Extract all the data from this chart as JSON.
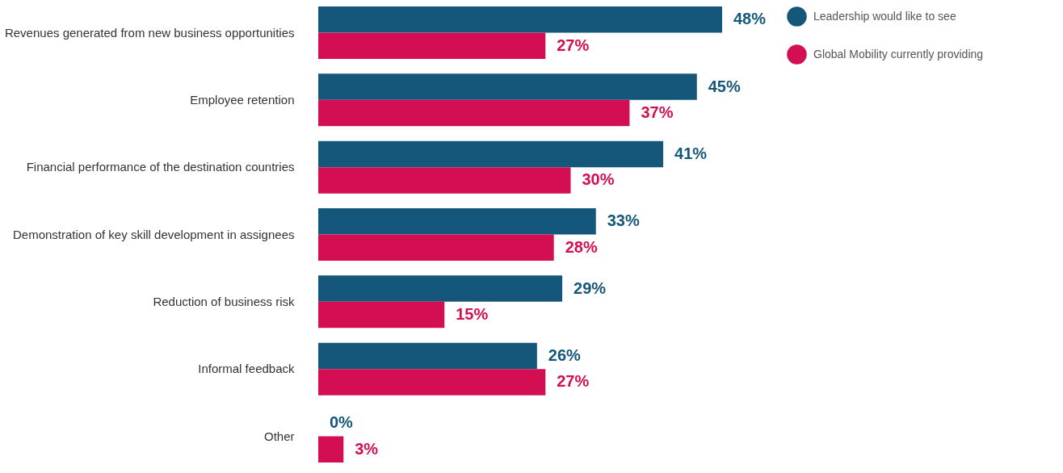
{
  "chart_data": {
    "type": "bar",
    "orientation": "horizontal",
    "legend": "top right",
    "categories": [
      "Revenues generated from new business opportunities",
      "Employee retention",
      "Financial performance of the destination countries",
      "Demonstration of key skill development in assignees",
      "Reduction of business risk",
      "Informal feedback",
      "Other"
    ],
    "series": [
      {
        "name": "Leadership would like to see",
        "color": "#14577a",
        "values": [
          48,
          45,
          41,
          33,
          29,
          26,
          0
        ],
        "value_labels": [
          "48%",
          "45%",
          "41%",
          "33%",
          "29%",
          "26%",
          "0%"
        ]
      },
      {
        "name": "Global Mobility currently providing",
        "color": "#d40e52",
        "values": [
          27,
          37,
          30,
          28,
          15,
          27,
          3
        ],
        "value_labels": [
          "27%",
          "37%",
          "30%",
          "28%",
          "15%",
          "27%",
          "3%"
        ]
      }
    ]
  }
}
